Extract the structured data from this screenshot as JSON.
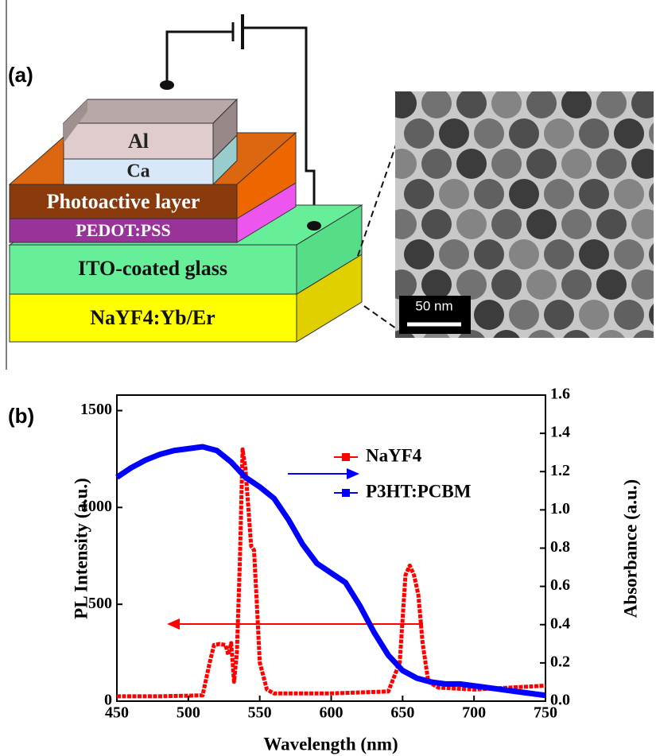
{
  "panel_a": {
    "label": "(a)",
    "layers": [
      "Al",
      "Ca",
      "Photoactive layer",
      "PEDOT:PSS",
      "ITO-coated glass",
      "NaYF4:Yb/Er"
    ],
    "scale_bar": "50 nm"
  },
  "chart_data": {
    "type": "line",
    "panel_label": "(b)",
    "x_label": "Wavelength (nm)",
    "y_label": "PL Intensity (a.u.)",
    "y2_label": "Absorbance (a.u.)",
    "xlim": [
      450,
      750
    ],
    "xticks": [
      450,
      500,
      550,
      600,
      650,
      700,
      750
    ],
    "ylim": [
      0,
      1580
    ],
    "yticks": [
      0,
      500,
      1000,
      1500
    ],
    "y2lim": [
      0,
      1.6
    ],
    "y2ticks": [
      {
        "value": 0,
        "label": "0.0"
      },
      0.2,
      0.4,
      0.6,
      0.8,
      {
        "value": 1,
        "label": "1.0"
      },
      1.2,
      1.4,
      1.6
    ],
    "legend": "upper right",
    "series": [
      {
        "name": "NaYF4",
        "color": "#ff0000",
        "x": [
          450,
          480,
          510,
          515,
          518,
          522,
          526,
          528,
          530,
          532,
          534,
          536,
          538,
          540,
          542,
          544,
          546,
          548,
          550,
          555,
          560,
          600,
          640,
          648,
          652,
          655,
          658,
          661,
          664,
          668,
          675,
          700,
          750
        ],
        "values": [
          25,
          25,
          30,
          200,
          290,
          295,
          290,
          240,
          300,
          100,
          250,
          700,
          1300,
          1200,
          1000,
          800,
          780,
          500,
          200,
          60,
          40,
          40,
          50,
          200,
          650,
          700,
          650,
          550,
          300,
          100,
          70,
          60,
          80
        ]
      },
      {
        "name": "P3HT:PCBM",
        "color": "#0000ff",
        "axis": "y2",
        "x": [
          450,
          460,
          470,
          480,
          490,
          500,
          510,
          520,
          530,
          540,
          550,
          560,
          570,
          580,
          590,
          600,
          610,
          620,
          630,
          640,
          650,
          660,
          670,
          680,
          690,
          700,
          710,
          720,
          730,
          740,
          750
        ],
        "values": [
          1.17,
          1.22,
          1.26,
          1.29,
          1.31,
          1.32,
          1.33,
          1.31,
          1.25,
          1.17,
          1.12,
          1.06,
          0.95,
          0.82,
          0.72,
          0.67,
          0.62,
          0.5,
          0.36,
          0.24,
          0.16,
          0.12,
          0.1,
          0.09,
          0.09,
          0.08,
          0.07,
          0.06,
          0.05,
          0.04,
          0.03
        ]
      }
    ]
  }
}
